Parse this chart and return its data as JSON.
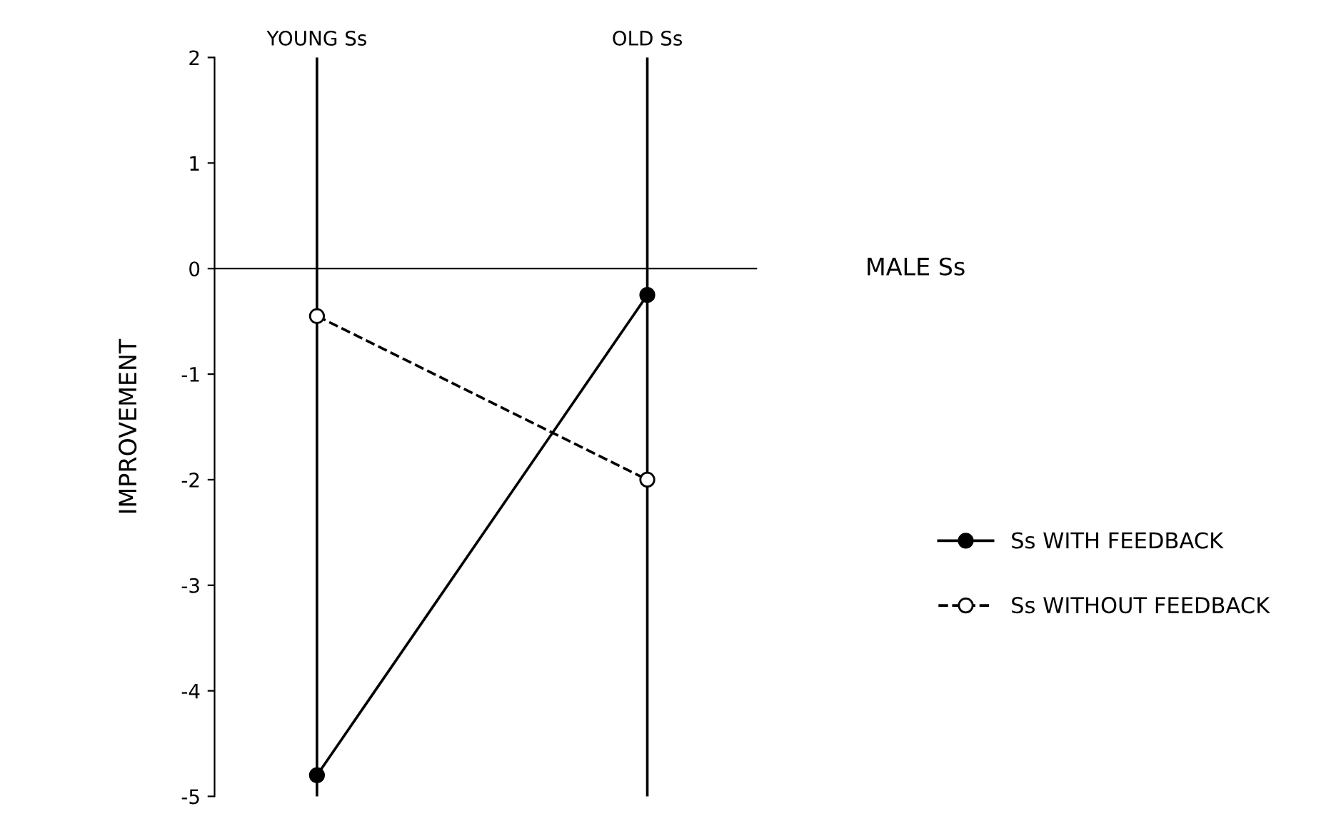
{
  "chart_data": {
    "type": "line",
    "categories": [
      "YOUNG Ss",
      "OLD Ss"
    ],
    "ylabel": "IMPROVEMENT",
    "ylim": [
      -5,
      2
    ],
    "yticks": [
      -5,
      -4,
      -3,
      -2,
      -1,
      0,
      1,
      2
    ],
    "grid": "x",
    "legend": "right",
    "annotations": [
      "MALE Ss"
    ],
    "series": [
      {
        "name": "Ss WITH FEEDBACK",
        "color": "#000000",
        "values": [
          -4.8,
          -0.25
        ],
        "marker": "circle",
        "line_style": "solid"
      },
      {
        "name": "Ss WITHOUT FEEDBACK",
        "color": "#000000",
        "values": [
          -0.45,
          -2.0
        ],
        "marker": "circle",
        "line_style": "dashed"
      }
    ]
  }
}
